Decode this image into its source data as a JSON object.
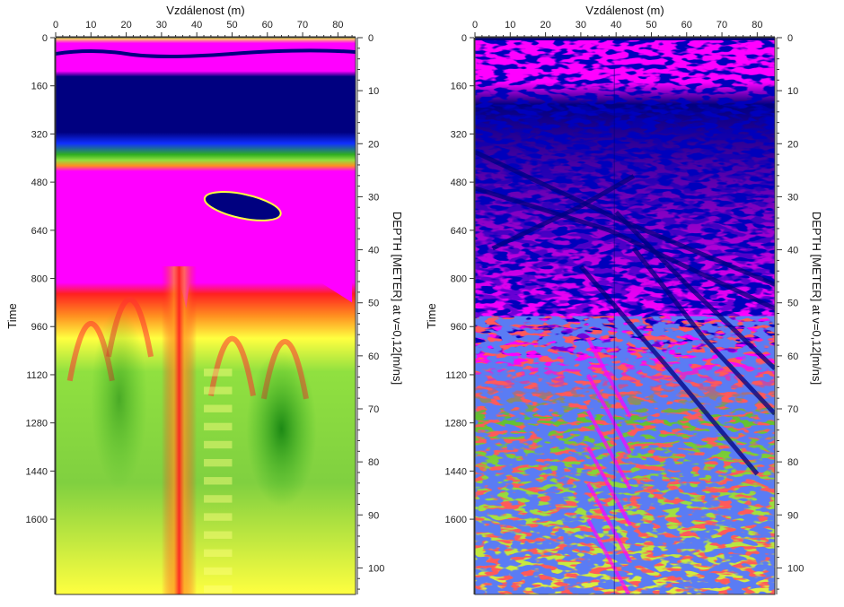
{
  "colors": {
    "magenta": "#ff00ff",
    "dark_blue": "#000080",
    "blue": "#1030ff",
    "green": "#30b020",
    "light_green": "#90e040",
    "yellow": "#ffff40",
    "orange": "#ff9020",
    "red": "#ff2020"
  },
  "chart_data": [
    {
      "type": "heatmap",
      "description_kind": "ground-penetrating radar radargram (raw, low-pass)",
      "xlabel": "Vzdálenost (m)",
      "ylabel_left": "Time",
      "ylabel_right": "DEPTH [METER] at v=0,12[m/ns]",
      "xlim": [
        0,
        85
      ],
      "x_ticks": [
        "0",
        "10",
        "20",
        "30",
        "40",
        "50",
        "60",
        "70",
        "80"
      ],
      "ylim_time": [
        0,
        1850
      ],
      "y_ticks_time": [
        "0",
        "160",
        "320",
        "480",
        "640",
        "800",
        "960",
        "1120",
        "1280",
        "1440",
        "1600"
      ],
      "ylim_depth": [
        0,
        105
      ],
      "y_ticks_depth": [
        "0",
        "10",
        "20",
        "30",
        "40",
        "50",
        "60",
        "70",
        "80",
        "90",
        "100"
      ],
      "colormap": [
        "#ff00ff",
        "#000080",
        "#1030ff",
        "#30b020",
        "#90e040",
        "#ffff40",
        "#ff9020",
        "#ff2020"
      ]
    },
    {
      "type": "heatmap",
      "description_kind": "ground-penetrating radar radargram (high-pass filtered)",
      "xlabel": "Vzdálenost (m)",
      "ylabel_left": "Time",
      "ylabel_right": "DEPTH [METER] at v=0,12[m/ns]",
      "xlim": [
        0,
        85
      ],
      "x_ticks": [
        "0",
        "10",
        "20",
        "30",
        "40",
        "50",
        "60",
        "70",
        "80"
      ],
      "ylim_time": [
        0,
        1850
      ],
      "y_ticks_time": [
        "0",
        "160",
        "320",
        "480",
        "640",
        "800",
        "960",
        "1120",
        "1280",
        "1440",
        "1600"
      ],
      "ylim_depth": [
        0,
        105
      ],
      "y_ticks_depth": [
        "0",
        "10",
        "20",
        "30",
        "40",
        "50",
        "60",
        "70",
        "80",
        "90",
        "100"
      ],
      "colormap": [
        "#ff00ff",
        "#000080",
        "#1030ff",
        "#30b020",
        "#90e040",
        "#ffff40",
        "#ff9020",
        "#ff2020"
      ]
    }
  ]
}
